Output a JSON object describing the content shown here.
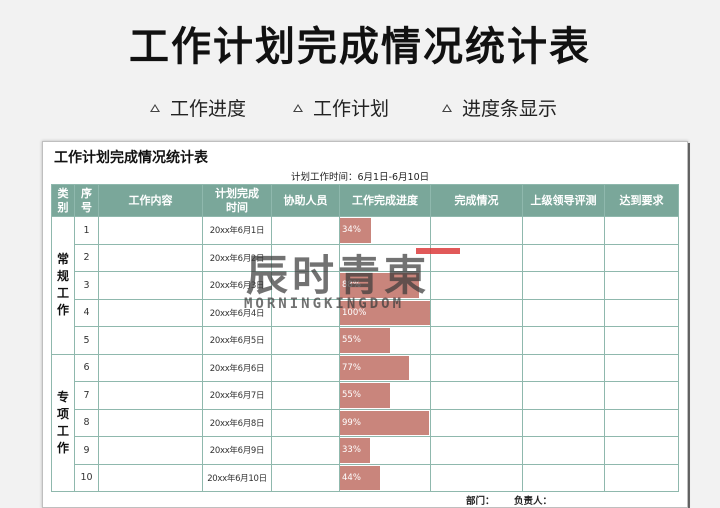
{
  "page_title": "工作计划完成情况统计表",
  "features": [
    "工作进度",
    "工作计划",
    "进度条显示"
  ],
  "sheet": {
    "title": "工作计划完成情况统计表",
    "plan_time": "计划工作时间：6月1日-6月10日",
    "headers": {
      "category": "类别",
      "seq": "序号",
      "content": "工作内容",
      "plan_time": "计划完成时间",
      "assist": "协助人员",
      "progress": "工作完成进度",
      "status": "完成情况",
      "review": "上级领导评测",
      "requirement": "达到要求"
    },
    "categories": [
      {
        "label": "常规工作"
      },
      {
        "label": "专项工作"
      }
    ],
    "rows": [
      {
        "seq": "1",
        "date": "20xx年6月1日",
        "progress": 34,
        "progress_label": "34%"
      },
      {
        "seq": "2",
        "date": "20xx年6月2日",
        "progress": 0,
        "progress_label": ""
      },
      {
        "seq": "3",
        "date": "20xx年6月3日",
        "progress": 88,
        "progress_label": "88%"
      },
      {
        "seq": "4",
        "date": "20xx年6月4日",
        "progress": 100,
        "progress_label": "100%"
      },
      {
        "seq": "5",
        "date": "20xx年6月5日",
        "progress": 55,
        "progress_label": "55%"
      },
      {
        "seq": "6",
        "date": "20xx年6月6日",
        "progress": 77,
        "progress_label": "77%"
      },
      {
        "seq": "7",
        "date": "20xx年6月7日",
        "progress": 55,
        "progress_label": "55%"
      },
      {
        "seq": "8",
        "date": "20xx年6月8日",
        "progress": 99,
        "progress_label": "99%"
      },
      {
        "seq": "9",
        "date": "20xx年6月9日",
        "progress": 33,
        "progress_label": "33%"
      },
      {
        "seq": "10",
        "date": "20xx年6月10日",
        "progress": 44,
        "progress_label": "44%"
      }
    ],
    "footer": {
      "department": "部门：",
      "responsible": "负责人："
    }
  },
  "watermark": {
    "main": "辰时青東",
    "sub": "MORNINGKINGDOM"
  },
  "colors": {
    "header_bg": "#7aa79a",
    "bar": "#c9857c",
    "border": "#8fb8ad"
  }
}
